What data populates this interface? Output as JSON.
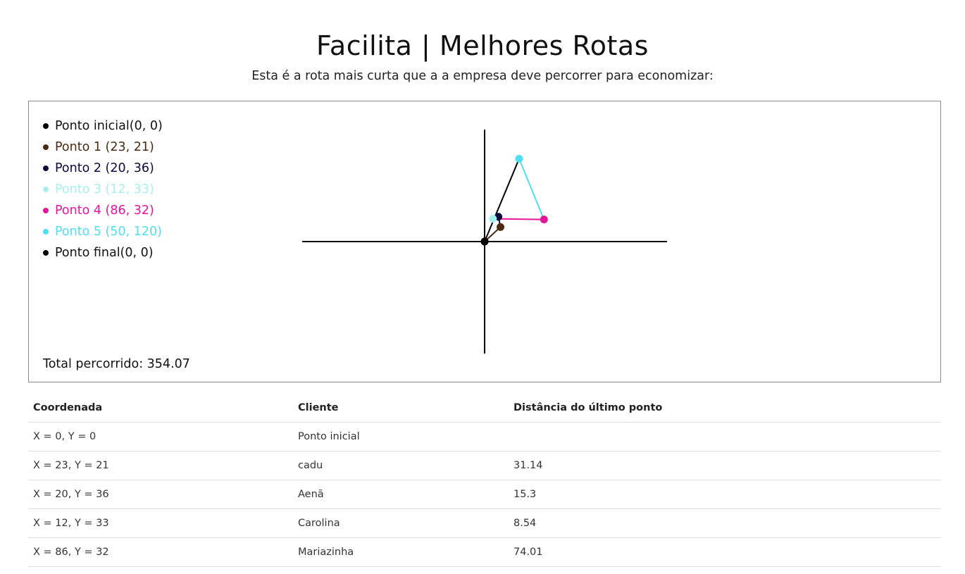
{
  "header": {
    "title": "Facilita | Melhores Rotas",
    "subtitle": "Esta é a rota mais curta que a a empresa deve percorrer para economizar:"
  },
  "legend": [
    {
      "label": "Ponto inicial(0, 0)",
      "color": "#000000",
      "text_color": "#111111"
    },
    {
      "label": "Ponto 1 (23, 21)",
      "color": "#4a2b12",
      "text_color": "#4a2b12"
    },
    {
      "label": "Ponto 2 (20, 36)",
      "color": "#0d0b3d",
      "text_color": "#0d0b3d"
    },
    {
      "label": "Ponto 3 (12, 33)",
      "color": "#a8f0ee",
      "text_color": "#a8f0ee"
    },
    {
      "label": "Ponto 4 (86, 32)",
      "color": "#e8149c",
      "text_color": "#e8149c"
    },
    {
      "label": "Ponto 5 (50, 120)",
      "color": "#4fdff0",
      "text_color": "#4fdff0"
    },
    {
      "label": "Ponto final(0, 0)",
      "color": "#000000",
      "text_color": "#111111"
    }
  ],
  "total": "Total percorrido: 354.07",
  "chart_data": {
    "type": "line",
    "points": [
      {
        "x": 0,
        "y": 0,
        "color": "#000000"
      },
      {
        "x": 23,
        "y": 21,
        "color": "#4a2b12"
      },
      {
        "x": 20,
        "y": 36,
        "color": "#0d0b3d"
      },
      {
        "x": 12,
        "y": 33,
        "color": "#a8f0ee"
      },
      {
        "x": 86,
        "y": 32,
        "color": "#e8149c"
      },
      {
        "x": 50,
        "y": 120,
        "color": "#4fdff0"
      },
      {
        "x": 0,
        "y": 0,
        "color": "#000000"
      }
    ],
    "axes": "cross at origin",
    "grid": false
  },
  "table": {
    "headers": [
      "Coordenada",
      "Cliente",
      "Distância do último ponto"
    ],
    "rows": [
      [
        "X = 0, Y = 0",
        "Ponto inicial",
        ""
      ],
      [
        "X = 23, Y = 21",
        "cadu",
        "31.14"
      ],
      [
        "X = 20, Y = 36",
        "Aenã",
        "15.3"
      ],
      [
        "X = 12, Y = 33",
        "Carolina",
        "8.54"
      ],
      [
        "X = 86, Y = 32",
        "Mariazinha",
        "74.01"
      ]
    ]
  }
}
